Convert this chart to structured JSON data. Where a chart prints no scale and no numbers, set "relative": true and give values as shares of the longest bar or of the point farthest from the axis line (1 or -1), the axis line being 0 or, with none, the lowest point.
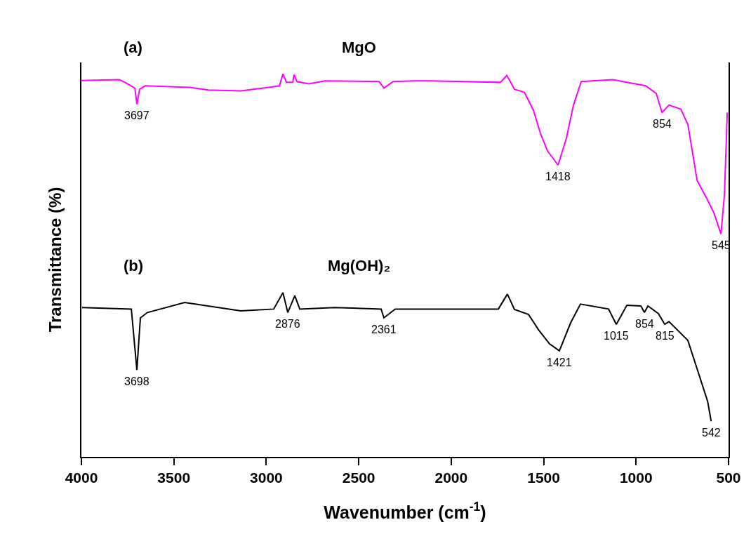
{
  "chart_data": {
    "type": "line",
    "relative": true,
    "xlabel": "Wavenumber (cm$^{-1}$)",
    "ylabel": "Transmittance (%)",
    "xlim": [
      4000,
      500
    ],
    "xticks": [
      4000,
      3500,
      3000,
      2500,
      2000,
      1500,
      1000,
      500
    ],
    "tick_labels": "x",
    "grid": false,
    "legend": false,
    "marker": "none",
    "line_style": "solid",
    "series": [
      {
        "name": "MgO",
        "color": "#ff00ff",
        "x": [
          4000,
          3795,
          3757,
          3711,
          3700,
          3685,
          3655,
          3415,
          3313,
          3138,
          2986,
          2929,
          2910,
          2891,
          2857,
          2850,
          2834,
          2770,
          2683,
          2390,
          2364,
          2314,
          2200,
          2113,
          1734,
          1699,
          1658,
          1604,
          1555,
          1517,
          1479,
          1422,
          1377,
          1339,
          1297,
          1126,
          948,
          891,
          860,
          822,
          758,
          720,
          670,
          617,
          579,
          541,
          522,
          507
        ],
        "values": [
          0.983,
          0.985,
          0.976,
          0.963,
          0.921,
          0.96,
          0.969,
          0.965,
          0.958,
          0.956,
          0.965,
          0.969,
          1.0,
          0.978,
          0.978,
          0.998,
          0.98,
          0.974,
          0.982,
          0.98,
          0.963,
          0.98,
          0.982,
          0.982,
          0.978,
          0.996,
          0.96,
          0.952,
          0.905,
          0.844,
          0.799,
          0.762,
          0.832,
          0.918,
          0.98,
          0.985,
          0.969,
          0.949,
          0.899,
          0.919,
          0.908,
          0.868,
          0.722,
          0.674,
          0.637,
          0.582,
          0.685,
          0.899
        ]
      },
      {
        "name": "Mg(OH)₂",
        "color": "#000000",
        "x": [
          3996,
          3730,
          3700,
          3681,
          3643,
          3442,
          3138,
          2960,
          2910,
          2884,
          2846,
          2819,
          2629,
          2379,
          2364,
          2303,
          2238,
          1745,
          1696,
          1658,
          1582,
          1528,
          1468,
          1415,
          1354,
          1301,
          1149,
          1107,
          1050,
          974,
          955,
          936,
          879,
          845,
          822,
          720,
          693,
          613,
          594
        ],
        "values": [
          0.39,
          0.386,
          0.227,
          0.363,
          0.377,
          0.403,
          0.381,
          0.386,
          0.429,
          0.377,
          0.421,
          0.386,
          0.39,
          0.386,
          0.363,
          0.386,
          0.386,
          0.386,
          0.425,
          0.385,
          0.372,
          0.332,
          0.295,
          0.277,
          0.35,
          0.399,
          0.386,
          0.346,
          0.396,
          0.394,
          0.377,
          0.394,
          0.374,
          0.346,
          0.353,
          0.304,
          0.264,
          0.145,
          0.093
        ]
      }
    ],
    "annotations": [
      "(a)",
      "(b)",
      {
        "text": "3697",
        "x": 3700,
        "y": 0.921
      },
      {
        "text": "1418",
        "x": 1422,
        "y": 0.762
      },
      {
        "text": "854",
        "x": 860,
        "y": 0.899
      },
      {
        "text": "545",
        "x": 541,
        "y": 0.582
      },
      {
        "text": "3698",
        "x": 3700,
        "y": 0.227
      },
      {
        "text": "2876",
        "x": 2884,
        "y": 0.377
      },
      {
        "text": "2361",
        "x": 2364,
        "y": 0.363
      },
      {
        "text": "1421",
        "x": 1415,
        "y": 0.277
      },
      {
        "text": "1015",
        "x": 1107,
        "y": 0.346
      },
      {
        "text": "854",
        "x": 955,
        "y": 0.377
      },
      {
        "text": "815",
        "x": 845,
        "y": 0.346
      },
      {
        "text": "542",
        "x": 594,
        "y": 0.093
      }
    ]
  }
}
